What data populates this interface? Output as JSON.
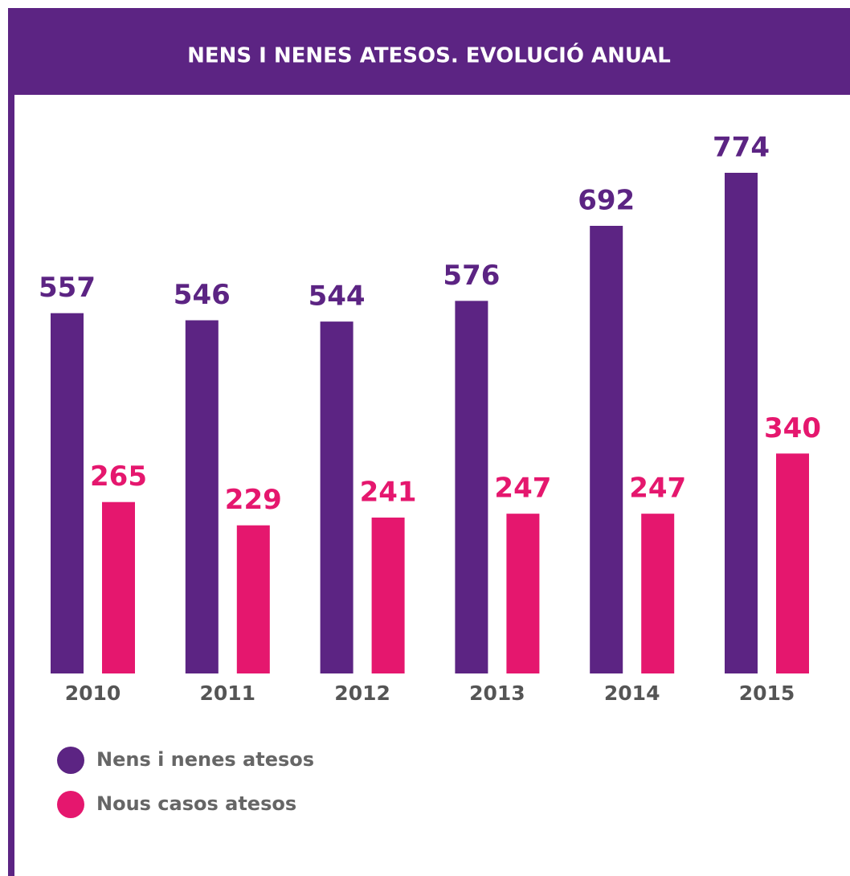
{
  "chart_data": {
    "type": "bar",
    "title": "NENS I NENES ATESOS. EVOLUCIÓ ANUAL",
    "categories": [
      "2010",
      "2011",
      "2012",
      "2013",
      "2014",
      "2015"
    ],
    "series": [
      {
        "name": "Nens i nenes atesos",
        "color": "#5c2483",
        "values": [
          557,
          546,
          544,
          576,
          692,
          774
        ]
      },
      {
        "name": "Nous casos atesos",
        "color": "#e5176e",
        "values": [
          265,
          229,
          241,
          247,
          247,
          340
        ]
      }
    ]
  }
}
